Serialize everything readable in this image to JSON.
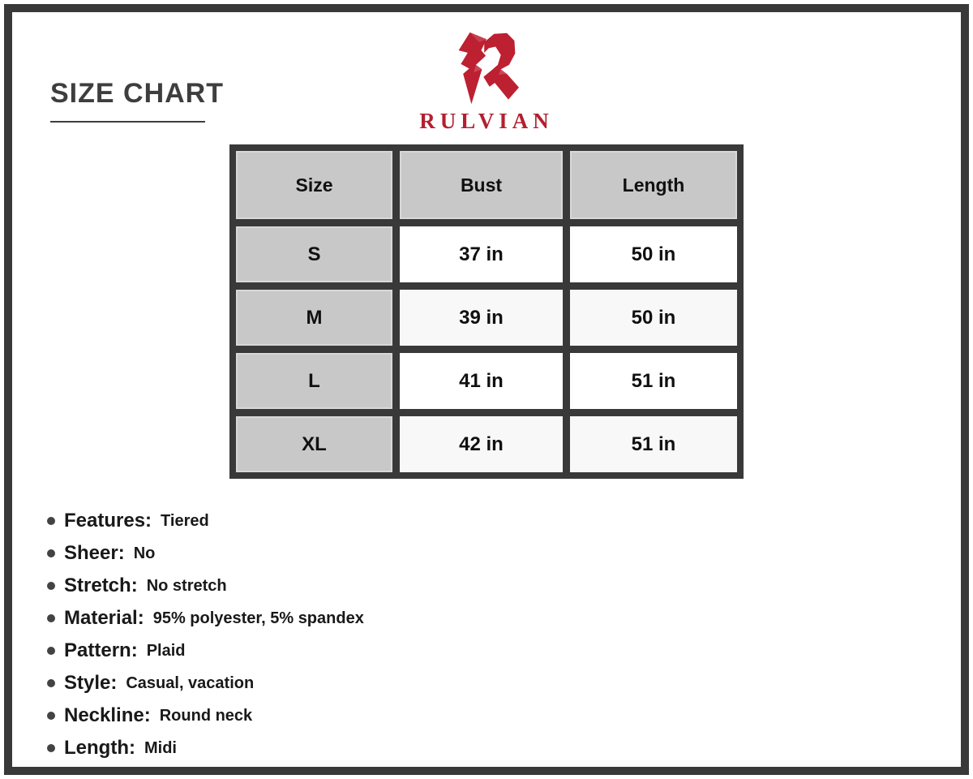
{
  "page": {
    "title": "SIZE CHART"
  },
  "brand": {
    "name": "RULVIAN",
    "logo_icon": "rulvian-stylized-r",
    "logo_color": "#bd2031",
    "wordmark_color": "#b22030"
  },
  "table": {
    "headers": [
      "Size",
      "Bust",
      "Length"
    ],
    "rows": [
      {
        "size": "S",
        "bust": "37 in",
        "length": "50 in"
      },
      {
        "size": "M",
        "bust": "39 in",
        "length": "50 in"
      },
      {
        "size": "L",
        "bust": "41 in",
        "length": "51 in"
      },
      {
        "size": "XL",
        "bust": "42 in",
        "length": "51 in"
      }
    ]
  },
  "details": [
    {
      "label": "Features:",
      "value": "Tiered"
    },
    {
      "label": "Sheer:",
      "value": "No"
    },
    {
      "label": "Stretch:",
      "value": "No stretch"
    },
    {
      "label": "Material:",
      "value": "95% polyester, 5% spandex"
    },
    {
      "label": "Pattern:",
      "value": "Plaid"
    },
    {
      "label": "Style:",
      "value": "Casual, vacation"
    },
    {
      "label": "Neckline:",
      "value": "Round neck"
    },
    {
      "label": "Length:",
      "value": "Midi"
    }
  ],
  "colors": {
    "frame_dark": "#393939",
    "header_gray": "#c8c8c8",
    "row_white": "#ffffff",
    "row_offwhite": "#f8f8f8"
  }
}
